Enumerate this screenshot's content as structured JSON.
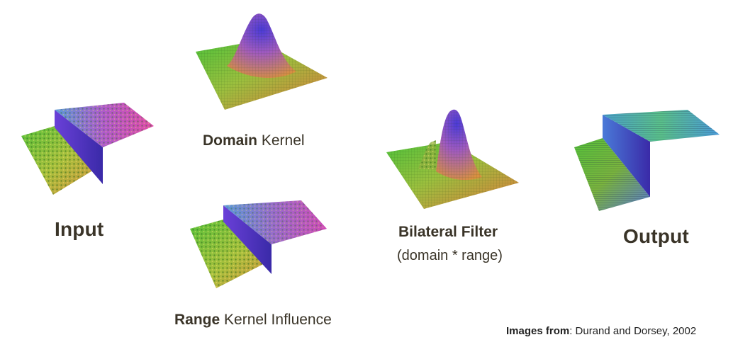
{
  "labels": {
    "input": "Input",
    "domain_bold": "Domain",
    "domain_rest": " Kernel",
    "range_bold": "Range",
    "range_rest": " Kernel Influence",
    "bilateral_title": "Bilateral Filter",
    "bilateral_sub": "(domain * range)",
    "output": "Output",
    "credit_bold": "Images from",
    "credit_rest": ": Durand and Dorsey, 2002"
  },
  "colors": {
    "green": "#58c23a",
    "yellow": "#c8c23a",
    "orange": "#e08a3a",
    "purple": "#5a3acf",
    "magenta": "#c04acb",
    "text": "#3a3428"
  }
}
